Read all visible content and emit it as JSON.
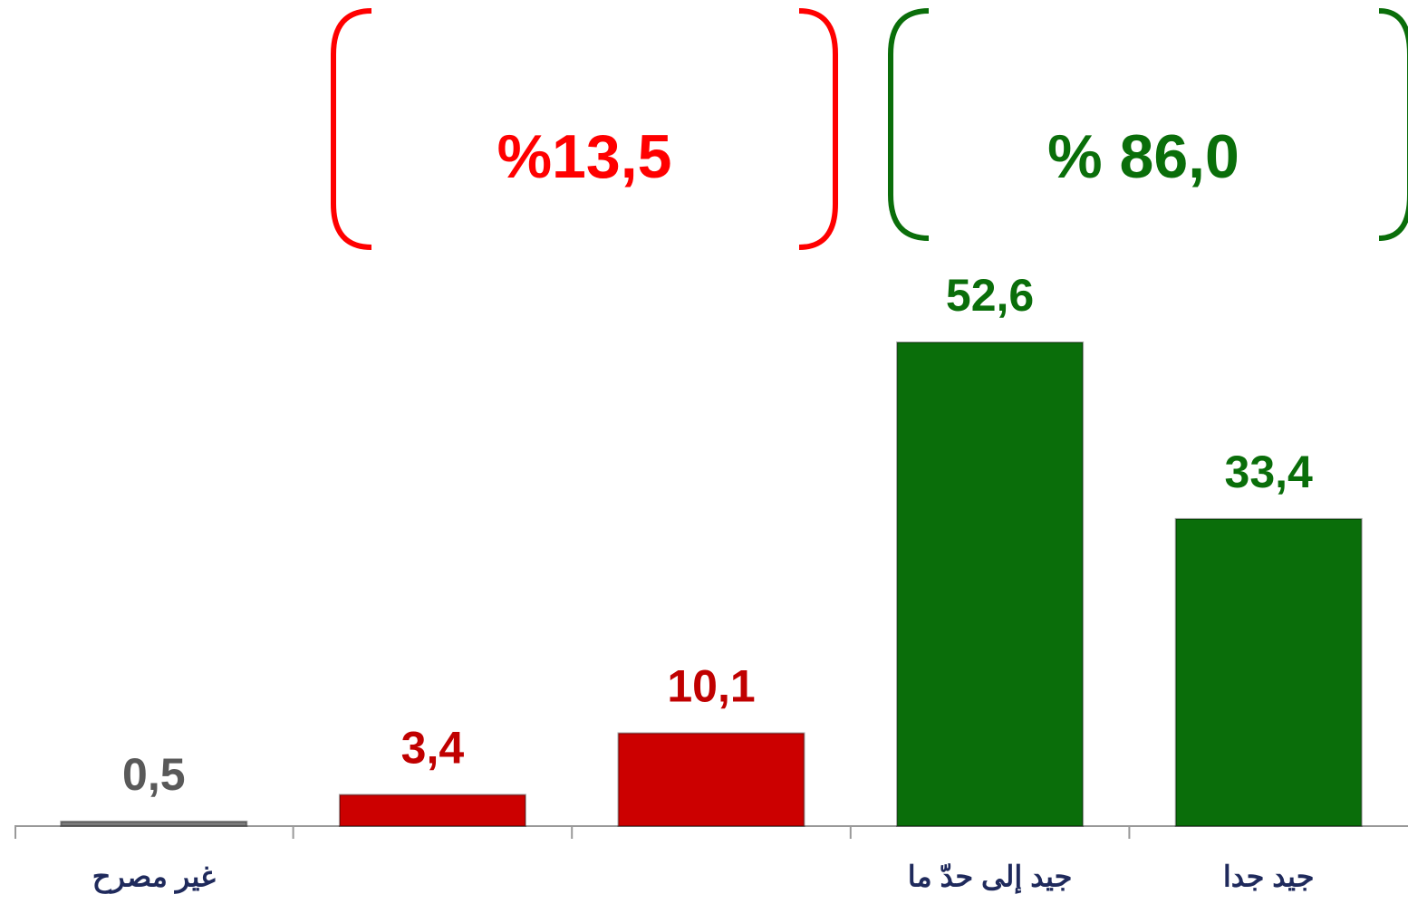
{
  "chart_data": {
    "type": "bar",
    "categories": [
      "غير مصرح",
      null,
      null,
      "جيد إلى حدّ ما",
      "جيد جدا"
    ],
    "values": [
      0.5,
      3.4,
      10.1,
      52.6,
      33.4
    ],
    "value_labels": [
      "0,5",
      "3,4",
      "10,1",
      "52,6",
      "33,4"
    ],
    "colors": [
      "#7a7a7a",
      "#cc0000",
      "#cc0000",
      "#0a6e0a",
      "#0a6e0a"
    ],
    "label_colors": [
      "#595959",
      "#c00000",
      "#c00000",
      "#0a6e0a",
      "#0a6e0a"
    ],
    "annotations": [
      {
        "text": "%13,5",
        "color": "#ff0000"
      },
      {
        "text": "% 86,0",
        "color": "#0a6e0a"
      }
    ]
  }
}
